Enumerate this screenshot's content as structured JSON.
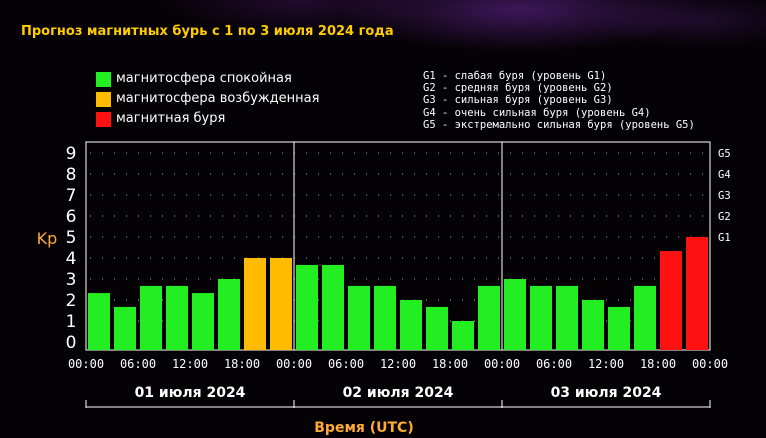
{
  "title": "Прогноз магнитных бурь с 1 по 3 июля 2024 года",
  "legend": [
    {
      "label": "магнитосфера спокойная",
      "color": "#22ee22"
    },
    {
      "label": "магнитосфера возбужденная",
      "color": "#ffbb00"
    },
    {
      "label": "магнитная буря",
      "color": "#ff1111"
    }
  ],
  "g_legend": [
    "G1 - слабая буря (уровень G1)",
    "G2 - средняя буря (уровень G2)",
    "G3 - сильная буря (уровень G3)",
    "G4 - очень сильная буря (уровень G4)",
    "G5 - экстремально сильная буря (уровень G5)"
  ],
  "chart_data": {
    "type": "bar",
    "title": "Прогноз магнитных бурь с 1 по 3 июля 2024 года",
    "xlabel": "Время (UTC)",
    "ylabel": "Kp",
    "ylim": [
      0,
      9.5
    ],
    "yticks": [
      "0",
      "1",
      "2",
      "3",
      "4",
      "5",
      "6",
      "7",
      "8",
      "9"
    ],
    "right_ticks": [
      {
        "label": "G1",
        "value": 5
      },
      {
        "label": "G2",
        "value": 6
      },
      {
        "label": "G3",
        "value": 7
      },
      {
        "label": "G4",
        "value": 8
      },
      {
        "label": "G5",
        "value": 9
      }
    ],
    "time_ticks": [
      "00:00",
      "06:00",
      "12:00",
      "18:00",
      "00:00",
      "06:00",
      "12:00",
      "18:00",
      "00:00",
      "06:00",
      "12:00",
      "18:00",
      "00:00"
    ],
    "days": [
      "01 июля 2024",
      "02 июля 2024",
      "03 июля 2024"
    ],
    "grid": true,
    "values": [
      2.33,
      1.67,
      2.67,
      2.67,
      2.33,
      3.0,
      4.0,
      4.0,
      3.67,
      3.67,
      2.67,
      2.67,
      2.0,
      1.67,
      1.0,
      2.67,
      3.0,
      2.67,
      2.67,
      2.0,
      1.67,
      2.67,
      4.33,
      5.0
    ],
    "colors": [
      "#22ee22",
      "#22ee22",
      "#22ee22",
      "#22ee22",
      "#22ee22",
      "#22ee22",
      "#ffbb00",
      "#ffbb00",
      "#22ee22",
      "#22ee22",
      "#22ee22",
      "#22ee22",
      "#22ee22",
      "#22ee22",
      "#22ee22",
      "#22ee22",
      "#22ee22",
      "#22ee22",
      "#22ee22",
      "#22ee22",
      "#22ee22",
      "#22ee22",
      "#ff1111",
      "#ff1111"
    ]
  }
}
